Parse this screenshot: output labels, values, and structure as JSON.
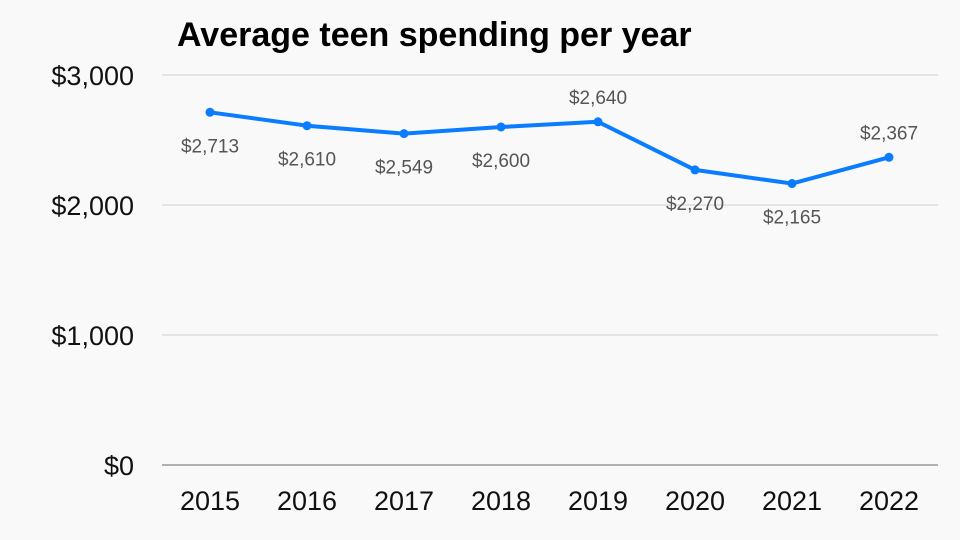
{
  "chart_data": {
    "type": "line",
    "title": "Average teen spending per year",
    "xlabel": "",
    "ylabel": "",
    "categories": [
      "2015",
      "2016",
      "2017",
      "2018",
      "2019",
      "2020",
      "2021",
      "2022"
    ],
    "values": [
      2713,
      2610,
      2549,
      2600,
      2640,
      2270,
      2165,
      2367
    ],
    "data_labels": [
      "$2,713",
      "$2,610",
      "$2,549",
      "$2,600",
      "$2,640",
      "$2,270",
      "$2,165",
      "$2,367"
    ],
    "label_positions": [
      "below",
      "below",
      "below",
      "below",
      "above",
      "below",
      "below",
      "above"
    ],
    "yticks": [
      0,
      1000,
      2000,
      3000
    ],
    "ytick_labels": [
      "$0",
      "$1,000",
      "$2,000",
      "$3,000"
    ],
    "ylim": [
      0,
      3000
    ],
    "grid": true,
    "colors": {
      "line": "#0a7cff",
      "grid": "#d0d0d0",
      "background": "#f9f9f9"
    }
  }
}
